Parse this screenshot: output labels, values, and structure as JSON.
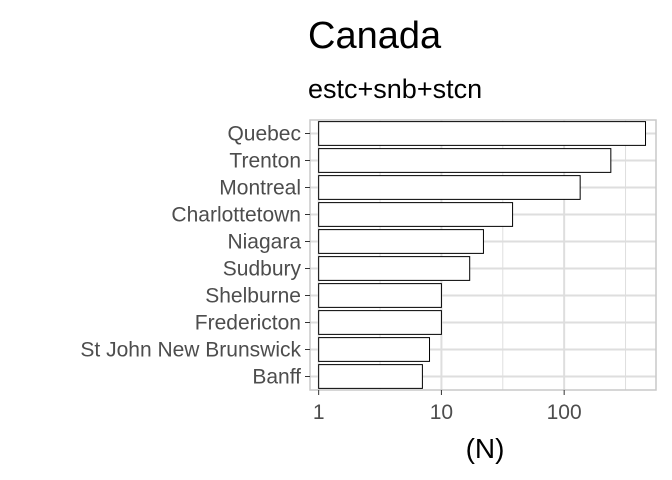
{
  "chart_data": {
    "type": "bar",
    "orientation": "horizontal",
    "title": "Canada",
    "subtitle": "estc+snb+stcn",
    "xlabel": "(N)",
    "ylabel": "",
    "x_scale": "log10",
    "xlim": [
      0.85,
      560
    ],
    "x_ticks": [
      {
        "value": 1,
        "label": "1"
      },
      {
        "value": 10,
        "label": "10"
      },
      {
        "value": 100,
        "label": "100"
      }
    ],
    "categories": [
      "Quebec",
      "Trenton",
      "Montreal",
      "Charlottetown",
      "Niagara",
      "Sudbury",
      "Shelburne",
      "Fredericton",
      "St John New Brunswick",
      "Banff"
    ],
    "values": [
      460,
      240,
      135,
      38,
      22,
      17,
      10,
      10,
      8,
      7
    ],
    "grid": true,
    "legend": "none",
    "colors": {
      "bar_fill": "#ffffff",
      "bar_stroke": "#000000",
      "grid": "#dedede",
      "panel_border": "#c8c8c8"
    }
  }
}
